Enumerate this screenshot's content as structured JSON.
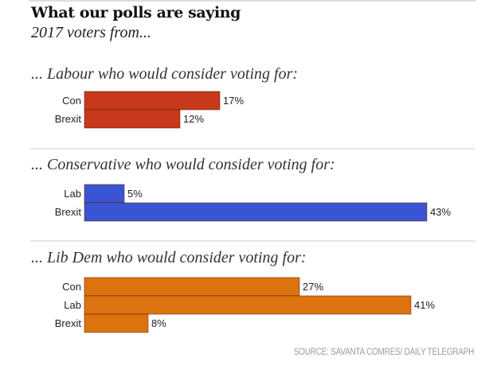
{
  "chart_data": {
    "type": "bar",
    "orientation": "horizontal",
    "title": "What our polls are saying",
    "subtitle": "2017 voters from...",
    "source": "SOURCE: SAVANTA COMRES/ DAILY TELEGRAPH",
    "value_unit": "%",
    "xlim": [
      0,
      43
    ],
    "grid": false,
    "panels": [
      {
        "heading": "... Labour who would consider voting for:",
        "color": "#c8381a",
        "categories": [
          "Con",
          "Brexit"
        ],
        "values": [
          17,
          12
        ],
        "labels": [
          "17%",
          "12%"
        ]
      },
      {
        "heading": "... Conservative who would consider voting for:",
        "color": "#3a55d3",
        "categories": [
          "Lab",
          "Brexit"
        ],
        "values": [
          5,
          43
        ],
        "labels": [
          "5%",
          "43%"
        ]
      },
      {
        "heading": "... Lib Dem who would consider voting for:",
        "color": "#dd730f",
        "categories": [
          "Con",
          "Lab",
          "Brexit"
        ],
        "values": [
          27,
          41,
          8
        ],
        "labels": [
          "27%",
          "41%",
          "8%"
        ]
      }
    ]
  }
}
